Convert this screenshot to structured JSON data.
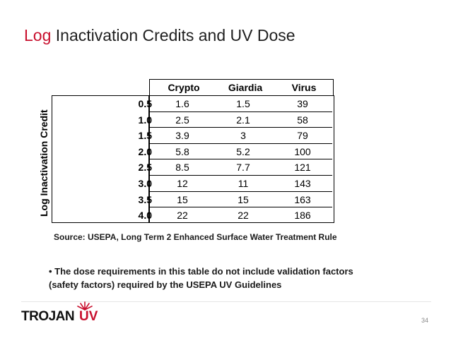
{
  "title": {
    "accent": "Log",
    "rest": "Inactivation Credits and UV Dose"
  },
  "table": {
    "row_axis_label": "Log Inactivation Credit",
    "columns": [
      "Crypto",
      "Giardia",
      "Virus"
    ],
    "rows": [
      {
        "label": "0.5",
        "values": [
          "1.6",
          "1.5",
          "39"
        ]
      },
      {
        "label": "1.0",
        "values": [
          "2.5",
          "2.1",
          "58"
        ]
      },
      {
        "label": "1.5",
        "values": [
          "3.9",
          "3",
          "79"
        ]
      },
      {
        "label": "2.0",
        "values": [
          "5.8",
          "5.2",
          "100"
        ]
      },
      {
        "label": "2.5",
        "values": [
          "8.5",
          "7.7",
          "121"
        ]
      },
      {
        "label": "3.0",
        "values": [
          "12",
          "11",
          "143"
        ]
      },
      {
        "label": "3.5",
        "values": [
          "15",
          "15",
          "163"
        ]
      },
      {
        "label": "4.0",
        "values": [
          "22",
          "22",
          "186"
        ]
      }
    ]
  },
  "source": "Source: USEPA, Long Term 2 Enhanced Surface Water Treatment Rule",
  "note": {
    "line1": "• The dose requirements in this table do not include validation factors",
    "line2": "(safety factors) required by the USEPA UV Guidelines"
  },
  "logo": {
    "part1": "TROJAN",
    "part2": "UV"
  },
  "page_number": "34",
  "colors": {
    "accent": "#c8102e"
  }
}
